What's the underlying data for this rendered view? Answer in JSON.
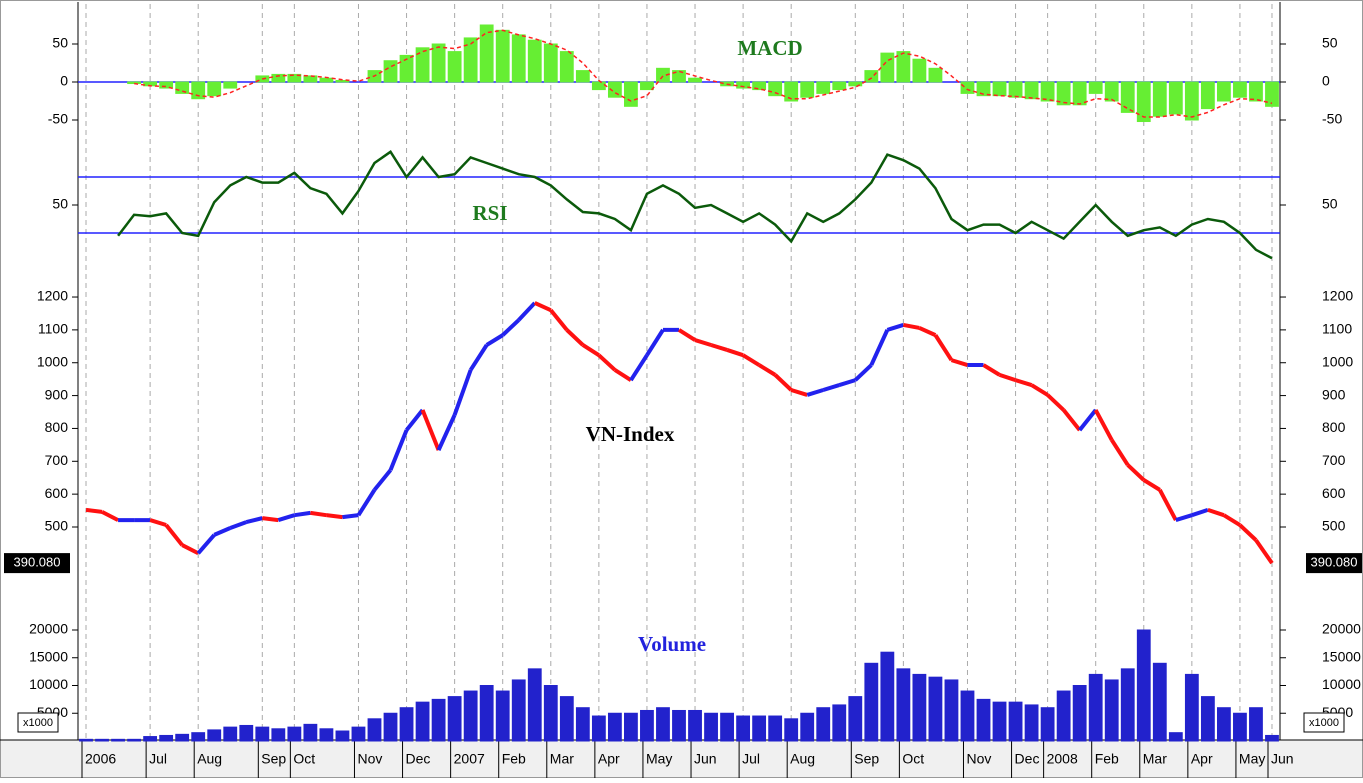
{
  "chart_data": [
    {
      "type": "bar",
      "annotation": "MACD",
      "annotation_color": "#1e7a1e",
      "color": "#66ee33",
      "line_color": "#ff2222",
      "line_dashed": true,
      "zero_line": 0,
      "zero_line_color": "#2222ff",
      "ylim": [
        -70,
        90
      ],
      "yticks": [
        50,
        0,
        -50
      ],
      "values": [
        null,
        null,
        null,
        -2,
        -5,
        -8,
        -15,
        -22,
        -18,
        -8,
        0,
        8,
        10,
        10,
        8,
        5,
        2,
        0,
        15,
        28,
        35,
        45,
        50,
        40,
        58,
        75,
        68,
        62,
        55,
        50,
        40,
        15,
        -10,
        -20,
        -32,
        -10,
        18,
        15,
        5,
        0,
        -5,
        -8,
        -10,
        -18,
        -25,
        -20,
        -15,
        -10,
        -5,
        15,
        38,
        40,
        30,
        18,
        0,
        -15,
        -18,
        -18,
        -20,
        -22,
        -25,
        -30,
        -30,
        -15,
        -25,
        -40,
        -52,
        -45,
        -42,
        -50,
        -35,
        -25,
        -20,
        -25,
        -32
      ],
      "line_values": [
        null,
        null,
        null,
        -2,
        -5,
        -6,
        -12,
        -18,
        -20,
        -14,
        -5,
        4,
        8,
        9,
        8,
        6,
        3,
        1,
        8,
        20,
        30,
        40,
        46,
        44,
        50,
        65,
        68,
        62,
        57,
        50,
        42,
        25,
        2,
        -14,
        -25,
        -18,
        8,
        14,
        8,
        2,
        -3,
        -6,
        -9,
        -14,
        -22,
        -22,
        -17,
        -12,
        -7,
        5,
        28,
        38,
        34,
        24,
        8,
        -10,
        -16,
        -18,
        -19,
        -21,
        -23,
        -27,
        -29,
        -22,
        -23,
        -35,
        -46,
        -46,
        -43,
        -46,
        -40,
        -30,
        -22,
        -23,
        -28
      ]
    },
    {
      "type": "line",
      "annotation": "RSI",
      "annotation_color": "#1e7a1e",
      "color": "#0b5a0b",
      "levels": [
        70,
        30
      ],
      "level_color": "#2222ff",
      "ylim": [
        5,
        95
      ],
      "yticks": [
        50
      ],
      "values": [
        null,
        null,
        28,
        43,
        42,
        44,
        30,
        28,
        52,
        64,
        70,
        66,
        66,
        73,
        62,
        58,
        44,
        60,
        80,
        88,
        70,
        84,
        70,
        72,
        84,
        80,
        76,
        72,
        70,
        64,
        54,
        45,
        44,
        40,
        32,
        58,
        64,
        58,
        48,
        50,
        44,
        38,
        44,
        36,
        24,
        44,
        38,
        44,
        54,
        66,
        86,
        82,
        76,
        62,
        40,
        32,
        36,
        36,
        30,
        38,
        32,
        26,
        38,
        50,
        38,
        28,
        32,
        34,
        28,
        36,
        40,
        38,
        30,
        18,
        12
      ]
    },
    {
      "type": "price",
      "annotation": "VN-Index",
      "annotation_color": "#000000",
      "up_color": "#2222ee",
      "down_color": "#ff1111",
      "ylim": [
        300,
        1250
      ],
      "yticks": [
        1200,
        1100,
        1000,
        900,
        800,
        700,
        600,
        500
      ],
      "values": [
        552,
        546,
        521,
        521,
        521,
        506,
        445,
        420,
        476,
        497,
        515,
        527,
        521,
        536,
        543,
        536,
        530,
        536,
        613,
        673,
        795,
        856,
        734,
        841,
        978,
        1054,
        1084,
        1130,
        1182,
        1160,
        1100,
        1054,
        1023,
        978,
        947,
        1023,
        1100,
        1100,
        1069,
        1054,
        1039,
        1023,
        993,
        963,
        917,
        902,
        917,
        932,
        947,
        993,
        1100,
        1115,
        1106,
        1084,
        1008,
        993,
        993,
        963,
        947,
        932,
        902,
        856,
        795,
        856,
        765,
        689,
        643,
        613,
        521,
        536,
        552,
        536,
        506,
        460,
        390.08
      ],
      "value_labels": [
        null,
        null,
        null,
        null,
        null,
        null,
        null,
        null,
        null,
        null,
        null,
        null,
        null,
        null,
        null,
        null,
        null,
        null,
        null,
        null,
        null,
        null,
        null,
        null,
        null,
        null,
        null,
        null,
        null,
        null,
        null,
        null,
        null,
        null,
        null,
        null,
        null,
        null,
        null,
        null,
        null,
        null,
        null,
        null,
        null,
        null,
        null,
        null,
        null,
        null,
        null,
        null,
        null,
        null,
        null,
        null,
        null,
        null,
        null,
        null,
        null,
        null,
        null,
        null,
        null,
        null,
        null,
        null,
        null,
        null,
        null,
        null,
        null,
        null,
        "390.080"
      ]
    },
    {
      "type": "bar",
      "annotation": "Volume",
      "annotation_color": "#2222dd",
      "color": "#2222cc",
      "unit_label": "x1000",
      "ylim": [
        0,
        26000
      ],
      "yticks": [
        20000,
        15000,
        10000,
        5000
      ],
      "values": [
        300,
        300,
        300,
        300,
        800,
        1000,
        1200,
        1500,
        2000,
        2500,
        2800,
        2500,
        2200,
        2500,
        3000,
        2200,
        1800,
        2500,
        4000,
        5000,
        6000,
        7000,
        7500,
        8000,
        9000,
        10000,
        9000,
        11000,
        13000,
        10000,
        8000,
        6000,
        4500,
        5000,
        5000,
        5500,
        6000,
        5500,
        5500,
        5000,
        5000,
        4500,
        4500,
        4500,
        4000,
        5000,
        6000,
        6500,
        8000,
        14000,
        16000,
        13000,
        12000,
        11500,
        11000,
        9000,
        7500,
        7000,
        7000,
        6500,
        6000,
        9000,
        10000,
        12000,
        11000,
        13000,
        20000,
        14000,
        1500,
        12000,
        8000,
        6000,
        5000,
        6000,
        1000
      ],
      "categories": [
        "2006",
        null,
        null,
        null,
        "Jul",
        null,
        null,
        "Aug",
        null,
        null,
        null,
        "Sep",
        null,
        "Oct",
        null,
        null,
        null,
        "Nov",
        null,
        null,
        "Dec",
        null,
        null,
        "2007",
        null,
        null,
        "Feb",
        null,
        null,
        "Mar",
        null,
        null,
        "Apr",
        null,
        null,
        "May",
        null,
        null,
        "Jun",
        null,
        null,
        "Jul",
        null,
        null,
        "Aug",
        null,
        null,
        null,
        "Sep",
        null,
        null,
        "Oct",
        null,
        null,
        null,
        "Nov",
        null,
        null,
        "Dec",
        null,
        "2008",
        null,
        null,
        "Feb",
        null,
        null,
        "Mar",
        null,
        null,
        "Apr",
        null,
        null,
        "May",
        null,
        "Jun"
      ]
    }
  ]
}
